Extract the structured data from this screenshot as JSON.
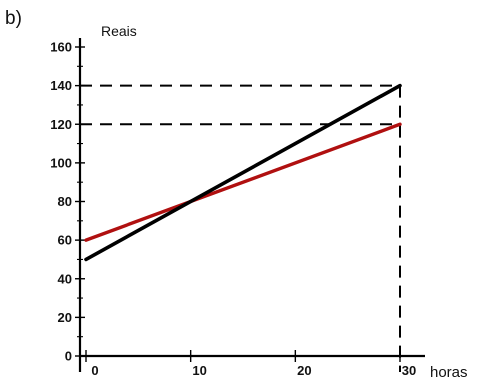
{
  "part_label": "b)",
  "chart_data": {
    "type": "line",
    "title": "",
    "xlabel": "horas",
    "ylabel": "Reais",
    "xlim": [
      0,
      30
    ],
    "ylim": [
      0,
      160
    ],
    "x_ticks": [
      0,
      10,
      20,
      30
    ],
    "y_ticks": [
      0,
      20,
      40,
      60,
      80,
      100,
      120,
      140,
      160
    ],
    "grid": false,
    "series": [
      {
        "x": [
          0,
          30
        ],
        "values": [
          60,
          120
        ],
        "color": "#b01010"
      },
      {
        "x": [
          0,
          30
        ],
        "values": [
          50,
          140
        ],
        "color": "#000000"
      }
    ],
    "guides": [
      {
        "x": 30,
        "y": 140
      },
      {
        "x": 30,
        "y": 120
      }
    ]
  }
}
